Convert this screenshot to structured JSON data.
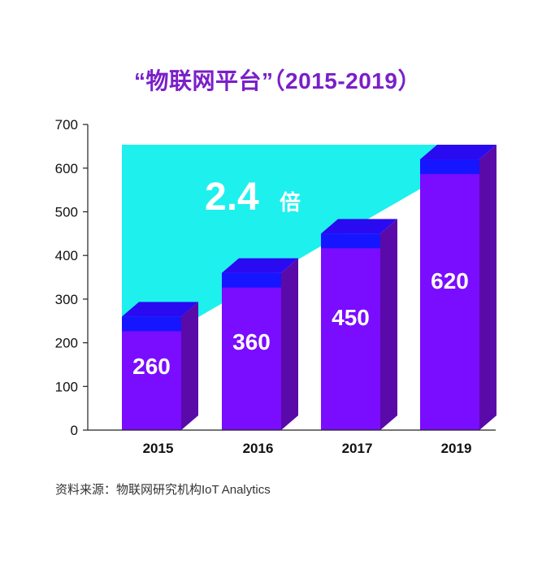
{
  "chart_data": {
    "type": "bar",
    "title": "“物联网平台”（2015-2019）",
    "categories": [
      "2015",
      "2016",
      "2017",
      "2019"
    ],
    "values": [
      260,
      360,
      450,
      620
    ],
    "value_labels": [
      "260",
      "360",
      "450",
      "620"
    ],
    "ylim": [
      0,
      700
    ],
    "yticks": [
      0,
      100,
      200,
      300,
      400,
      500,
      600,
      700
    ],
    "xlabel": "",
    "ylabel": "",
    "grid": false,
    "annotation": {
      "number": "2.4",
      "suffix": "倍"
    },
    "colors": {
      "bar_front": "#7a0cff",
      "bar_side": "#5a0aa8",
      "bar_top": "#2a0af0",
      "bar_top_overlap": "#0b16ff",
      "growth_area": "#1ef0ee",
      "title": "#7a1fc9",
      "value_label": "#ffffff"
    }
  },
  "source": "资料来源：物联网研究机构IoT Analytics"
}
